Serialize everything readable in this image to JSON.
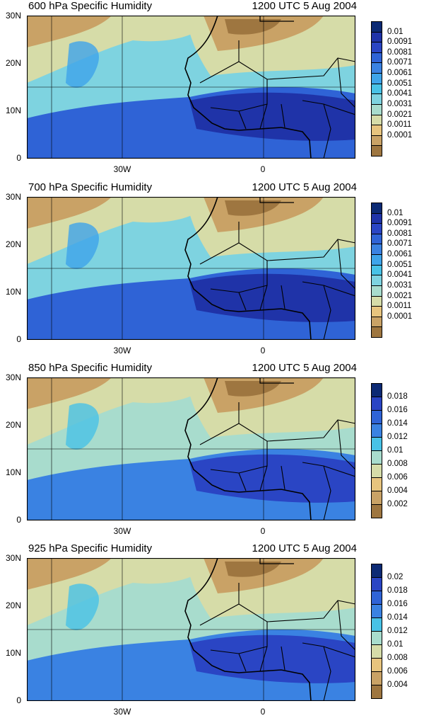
{
  "figure": {
    "panels": [
      {
        "title_left": "600 hPa Specific Humidity",
        "title_right": "1200 UTC 5 Aug 2004",
        "lat_labels": [
          "30N",
          "20N",
          "10N",
          "0"
        ],
        "lon_labels": [
          "30W",
          "0"
        ],
        "colorbar_labels": [
          "0.01",
          "0.0091",
          "0.0081",
          "0.0071",
          "0.0061",
          "0.0051",
          "0.0041",
          "0.0031",
          "0.0021",
          "0.0011",
          "0.0001"
        ],
        "colorbar_colors": [
          "#0c2a74",
          "#1f33a8",
          "#2a45c4",
          "#2f63d6",
          "#3a82e2",
          "#3ea4ea",
          "#48c2e6",
          "#7ed3e0",
          "#a8dccd",
          "#d6dca8",
          "#e7c47e",
          "#c9a266",
          "#9e7640"
        ],
        "fields": {
          "humid_regions": "Moist band over West Africa and Gulf of Guinea; dry air over Sahara and northwest subtropical Atlantic"
        }
      },
      {
        "title_left": "700 hPa Specific Humidity",
        "title_right": "1200 UTC 5 Aug 2004",
        "lat_labels": [
          "30N",
          "20N",
          "10N",
          "0"
        ],
        "lon_labels": [
          "30W",
          "0"
        ],
        "colorbar_labels": [
          "0.01",
          "0.0091",
          "0.0081",
          "0.0071",
          "0.0061",
          "0.0051",
          "0.0041",
          "0.0031",
          "0.0021",
          "0.0011",
          "0.0001"
        ],
        "colorbar_colors": [
          "#0c2a74",
          "#1f33a8",
          "#2a45c4",
          "#2f63d6",
          "#3a82e2",
          "#3ea4ea",
          "#48c2e6",
          "#7ed3e0",
          "#a8dccd",
          "#d6dca8",
          "#e7c47e",
          "#c9a266",
          "#9e7640"
        ]
      },
      {
        "title_left": "850 hPa Specific Humidity",
        "title_right": "1200 UTC 5 Aug 2004",
        "lat_labels": [
          "30N",
          "20N",
          "10N",
          "0"
        ],
        "lon_labels": [
          "30W",
          "0"
        ],
        "colorbar_labels": [
          "0.018",
          "0.016",
          "0.014",
          "0.012",
          "0.01",
          "0.008",
          "0.006",
          "0.004",
          "0.002"
        ],
        "colorbar_colors": [
          "#0c2a74",
          "#2a45c4",
          "#2f63d6",
          "#3a82e2",
          "#48c2e6",
          "#a8dccd",
          "#d6dca8",
          "#e7c47e",
          "#c9a266",
          "#9e7640"
        ]
      },
      {
        "title_left": "925 hPa Specific Humidity",
        "title_right": "1200 UTC 5 Aug 2004",
        "lat_labels": [
          "30N",
          "20N",
          "10N",
          "0"
        ],
        "lon_labels": [
          "30W",
          "0"
        ],
        "colorbar_labels": [
          "0.02",
          "0.018",
          "0.016",
          "0.014",
          "0.012",
          "0.01",
          "0.008",
          "0.006",
          "0.004"
        ],
        "colorbar_colors": [
          "#0c2a74",
          "#2a45c4",
          "#2f63d6",
          "#3a82e2",
          "#48c2e6",
          "#a8dccd",
          "#d6dca8",
          "#e7c47e",
          "#c9a266",
          "#9e7640"
        ]
      }
    ]
  }
}
